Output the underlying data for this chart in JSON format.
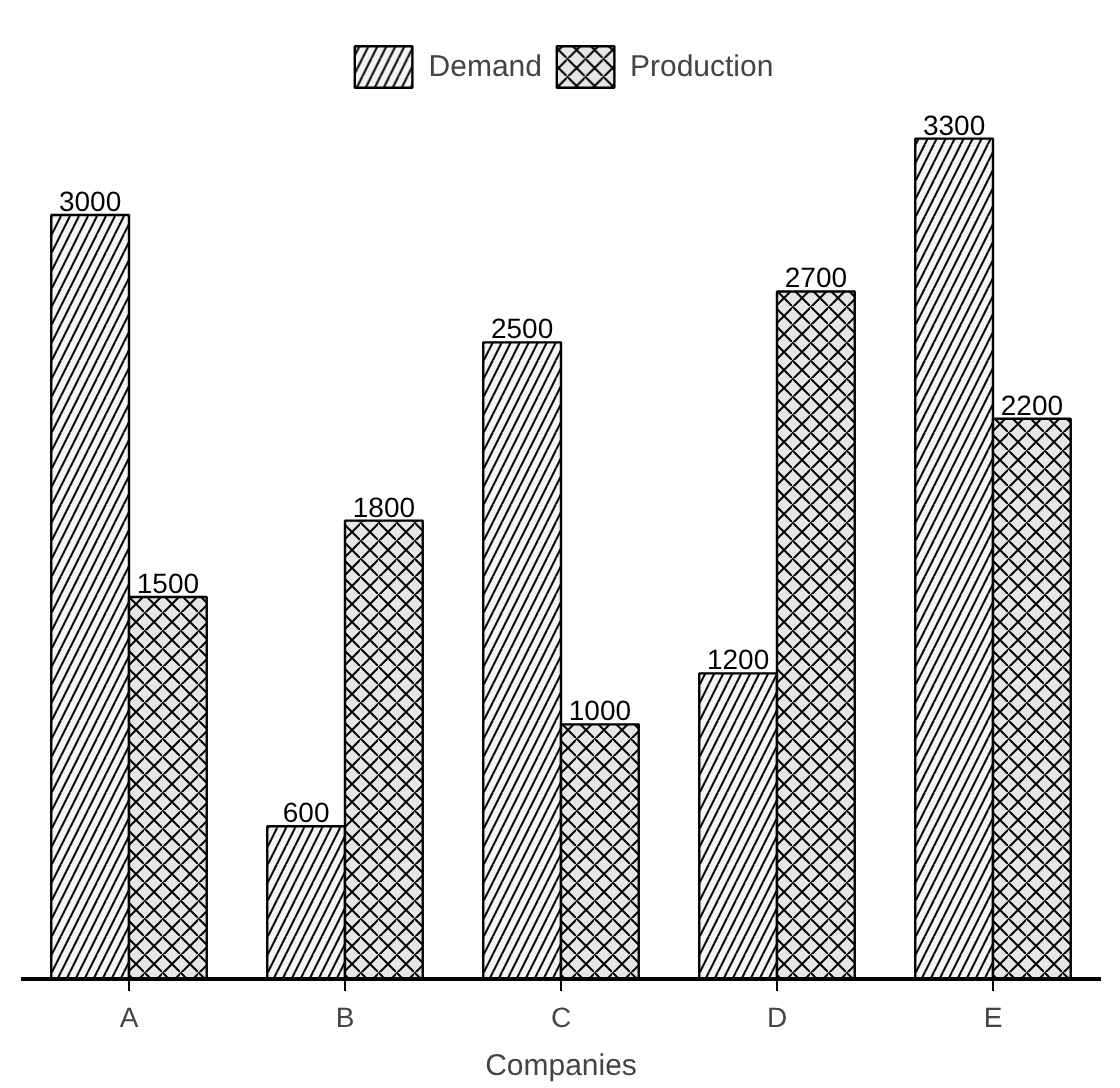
{
  "chart_data": {
    "type": "bar",
    "xlabel": "Companies",
    "categories": [
      "A",
      "B",
      "C",
      "D",
      "E"
    ],
    "series": [
      {
        "name": "Demand",
        "color": "#f4f4f4",
        "values": [
          3000,
          600,
          2500,
          1200,
          3300
        ]
      },
      {
        "name": "Production",
        "color": "#e6e6e6",
        "values": [
          1500,
          1800,
          1000,
          2700,
          2200
        ]
      }
    ],
    "data_labels": true,
    "legend": "top",
    "grid": false
  }
}
